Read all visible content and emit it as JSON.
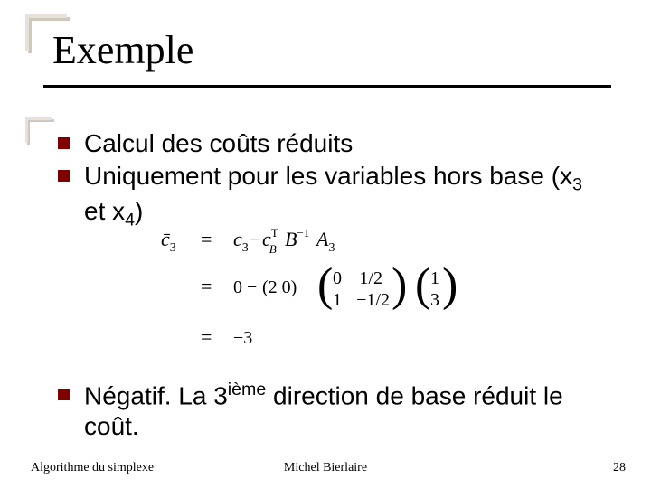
{
  "title": "Exemple",
  "bullets": {
    "item1": "Calcul des coûts réduits",
    "item2_pre": "Uniquement pour les variables hors base (x",
    "item2_sub1": "3",
    "item2_mid": " et x",
    "item2_sub2": "4",
    "item2_post": ")",
    "item3_pre": "Négatif. La 3",
    "item3_sup": "ième",
    "item3_post": " direction de base réduit le coût."
  },
  "math": {
    "line1_lhs_var": "c̄",
    "line1_lhs_sub": "3",
    "line1_rhs_a": "c",
    "line1_rhs_a_sub": "3",
    "line1_rhs_b": "c",
    "line1_rhs_b_sup": "T",
    "line1_rhs_b_sub": "B",
    "line1_rhs_c": "B",
    "line1_rhs_c_sup": "−1",
    "line1_rhs_d": "A",
    "line1_rhs_d_sub": "3",
    "line2_scalar": "0",
    "line2_row": "(2  0)",
    "matrix1": {
      "r1c1": "0",
      "r1c2": "1/2",
      "r2c1": "1",
      "r2c2": "−1/2"
    },
    "vector": {
      "r1": "1",
      "r2": "3"
    },
    "line3_result": "−3"
  },
  "footer": {
    "left": "Algorithme du simplexe",
    "center": "Michel Bierlaire",
    "page": "28"
  },
  "colors": {
    "bullet": "#800000",
    "text": "#000000",
    "corner_light": "#e6e1d9",
    "corner_shadow": "#cfc9bd"
  }
}
